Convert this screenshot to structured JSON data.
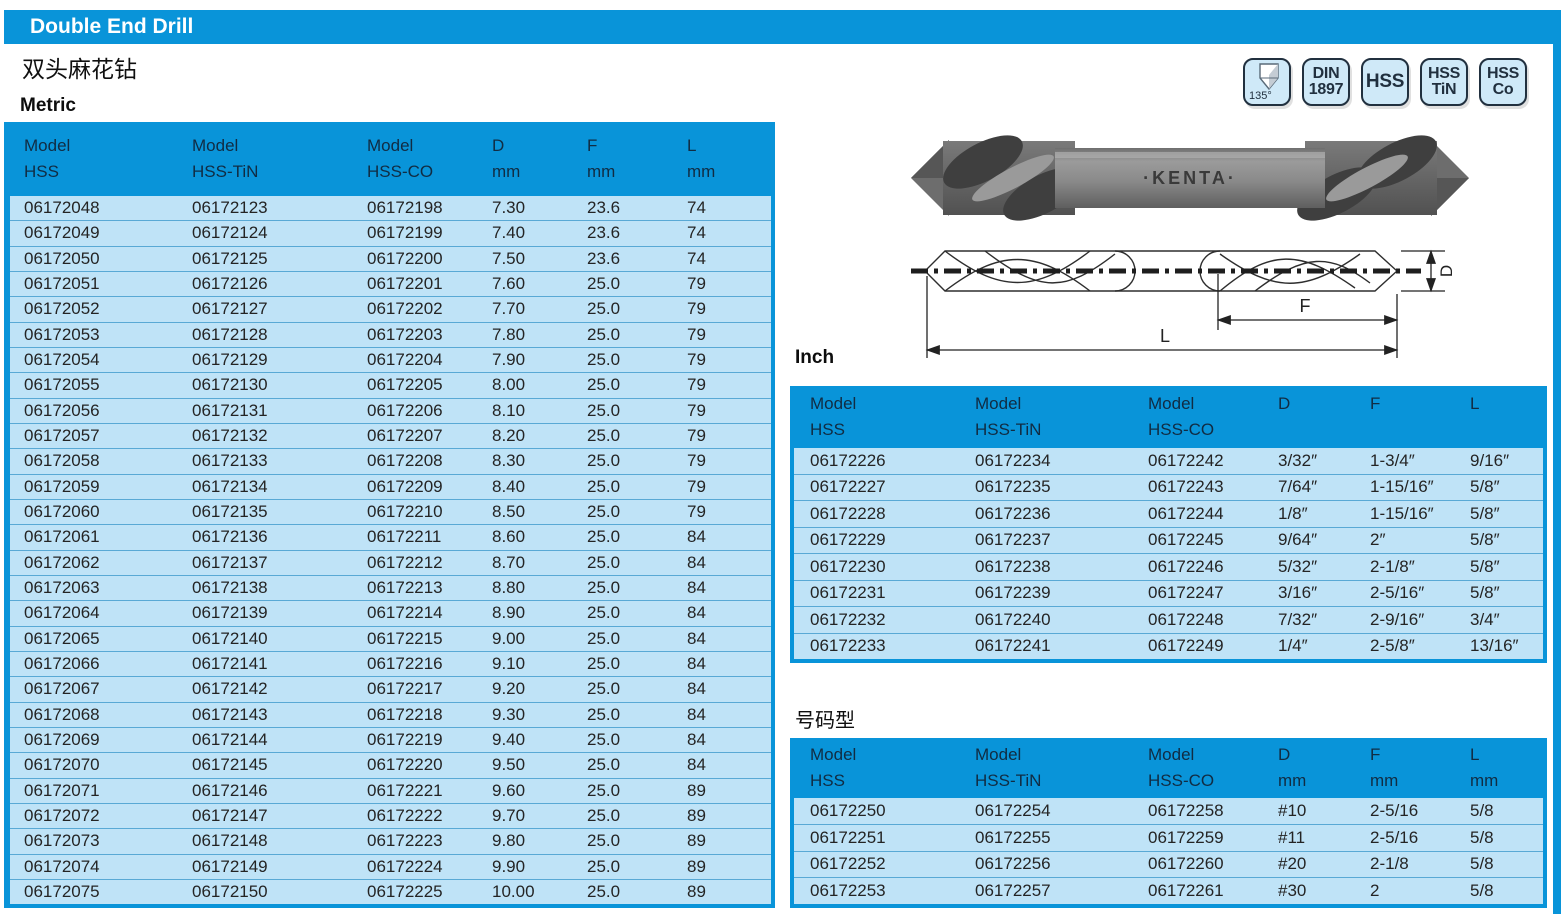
{
  "page": {
    "title": "Double End Drill",
    "subtitle_cn": "双头麻花钻"
  },
  "colors": {
    "accent": "#0994d9",
    "row_fill": "#bfe3f7",
    "badge_fill": "#cfe9f8",
    "ink": "#1c2b39"
  },
  "badges": [
    {
      "icon": "point-angle-135-icon",
      "type": "point-angle",
      "label": "135°"
    },
    {
      "icon": "din-1897-badge",
      "line1": "DIN",
      "line2": "1897"
    },
    {
      "icon": "hss-badge",
      "line1": "HSS",
      "line2": ""
    },
    {
      "icon": "hss-tin-badge",
      "line1": "HSS",
      "line2": "TiN"
    },
    {
      "icon": "hss-co-badge",
      "line1": "HSS",
      "line2": "Co"
    }
  ],
  "photo": {
    "brand": "·KENTA·"
  },
  "diagram": {
    "labels": {
      "d": "D",
      "f": "F",
      "l": "L"
    }
  },
  "tables": {
    "metric": {
      "section_label": "Metric",
      "col_top": [
        "Model",
        "Model",
        "Model",
        "D",
        "F",
        "L"
      ],
      "col_bottom": [
        "HSS",
        "HSS-TiN",
        "HSS-CO",
        "mm",
        "mm",
        "mm"
      ],
      "rows": [
        [
          "06172048",
          "06172123",
          "06172198",
          "7.30",
          "23.6",
          "74"
        ],
        [
          "06172049",
          "06172124",
          "06172199",
          "7.40",
          "23.6",
          "74"
        ],
        [
          "06172050",
          "06172125",
          "06172200",
          "7.50",
          "23.6",
          "74"
        ],
        [
          "06172051",
          "06172126",
          "06172201",
          "7.60",
          "25.0",
          "79"
        ],
        [
          "06172052",
          "06172127",
          "06172202",
          "7.70",
          "25.0",
          "79"
        ],
        [
          "06172053",
          "06172128",
          "06172203",
          "7.80",
          "25.0",
          "79"
        ],
        [
          "06172054",
          "06172129",
          "06172204",
          "7.90",
          "25.0",
          "79"
        ],
        [
          "06172055",
          "06172130",
          "06172205",
          "8.00",
          "25.0",
          "79"
        ],
        [
          "06172056",
          "06172131",
          "06172206",
          "8.10",
          "25.0",
          "79"
        ],
        [
          "06172057",
          "06172132",
          "06172207",
          "8.20",
          "25.0",
          "79"
        ],
        [
          "06172058",
          "06172133",
          "06172208",
          "8.30",
          "25.0",
          "79"
        ],
        [
          "06172059",
          "06172134",
          "06172209",
          "8.40",
          "25.0",
          "79"
        ],
        [
          "06172060",
          "06172135",
          "06172210",
          "8.50",
          "25.0",
          "79"
        ],
        [
          "06172061",
          "06172136",
          "06172211",
          "8.60",
          "25.0",
          "84"
        ],
        [
          "06172062",
          "06172137",
          "06172212",
          "8.70",
          "25.0",
          "84"
        ],
        [
          "06172063",
          "06172138",
          "06172213",
          "8.80",
          "25.0",
          "84"
        ],
        [
          "06172064",
          "06172139",
          "06172214",
          "8.90",
          "25.0",
          "84"
        ],
        [
          "06172065",
          "06172140",
          "06172215",
          "9.00",
          "25.0",
          "84"
        ],
        [
          "06172066",
          "06172141",
          "06172216",
          "9.10",
          "25.0",
          "84"
        ],
        [
          "06172067",
          "06172142",
          "06172217",
          "9.20",
          "25.0",
          "84"
        ],
        [
          "06172068",
          "06172143",
          "06172218",
          "9.30",
          "25.0",
          "84"
        ],
        [
          "06172069",
          "06172144",
          "06172219",
          "9.40",
          "25.0",
          "84"
        ],
        [
          "06172070",
          "06172145",
          "06172220",
          "9.50",
          "25.0",
          "84"
        ],
        [
          "06172071",
          "06172146",
          "06172221",
          "9.60",
          "25.0",
          "89"
        ],
        [
          "06172072",
          "06172147",
          "06172222",
          "9.70",
          "25.0",
          "89"
        ],
        [
          "06172073",
          "06172148",
          "06172223",
          "9.80",
          "25.0",
          "89"
        ],
        [
          "06172074",
          "06172149",
          "06172224",
          "9.90",
          "25.0",
          "89"
        ],
        [
          "06172075",
          "06172150",
          "06172225",
          "10.00",
          "25.0",
          "89"
        ]
      ]
    },
    "inch": {
      "section_label": "Inch",
      "col_top": [
        "Model",
        "Model",
        "Model",
        "D",
        "F",
        "L"
      ],
      "col_bottom": [
        "HSS",
        "HSS-TiN",
        "HSS-CO",
        "",
        "",
        ""
      ],
      "rows": [
        [
          "06172226",
          "06172234",
          "06172242",
          "3/32″",
          "1-3/4″",
          "9/16″"
        ],
        [
          "06172227",
          "06172235",
          "06172243",
          "7/64″",
          "1-15/16″",
          "5/8″"
        ],
        [
          "06172228",
          "06172236",
          "06172244",
          "1/8″",
          "1-15/16″",
          "5/8″"
        ],
        [
          "06172229",
          "06172237",
          "06172245",
          "9/64″",
          "2″",
          "5/8″"
        ],
        [
          "06172230",
          "06172238",
          "06172246",
          "5/32″",
          "2-1/8″",
          "5/8″"
        ],
        [
          "06172231",
          "06172239",
          "06172247",
          "3/16″",
          "2-5/16″",
          "5/8″"
        ],
        [
          "06172232",
          "06172240",
          "06172248",
          "7/32″",
          "2-9/16″",
          "3/4″"
        ],
        [
          "06172233",
          "06172241",
          "06172249",
          "1/4″",
          "2-5/8″",
          "13/16″"
        ]
      ]
    },
    "number": {
      "section_label": "号码型",
      "col_top": [
        "Model",
        "Model",
        "Model",
        "D",
        "F",
        "L"
      ],
      "col_bottom": [
        "HSS",
        "HSS-TiN",
        "HSS-CO",
        "mm",
        "mm",
        "mm"
      ],
      "rows": [
        [
          "06172250",
          "06172254",
          "06172258",
          "#10",
          "2-5/16",
          "5/8"
        ],
        [
          "06172251",
          "06172255",
          "06172259",
          "#11",
          "2-5/16",
          "5/8"
        ],
        [
          "06172252",
          "06172256",
          "06172260",
          "#20",
          "2-1/8",
          "5/8"
        ],
        [
          "06172253",
          "06172257",
          "06172261",
          "#30",
          "2",
          "5/8"
        ]
      ]
    }
  }
}
